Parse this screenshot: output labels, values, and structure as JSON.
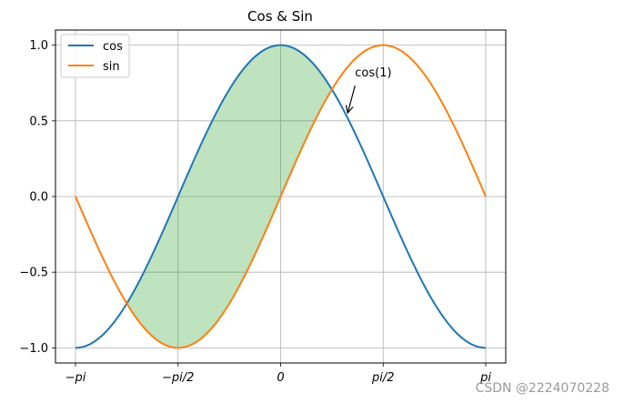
{
  "chart_data": {
    "type": "line",
    "title": "Cos & Sin",
    "xlabel": "",
    "ylabel": "",
    "xlim": [
      -3.14159,
      3.14159
    ],
    "ylim": [
      -1.1,
      1.1
    ],
    "grid": true,
    "legend_position": "top-left",
    "x_ticks": [
      {
        "value": -3.14159,
        "label": "−pi"
      },
      {
        "value": -1.5708,
        "label": "−pi/2"
      },
      {
        "value": 0,
        "label": "0"
      },
      {
        "value": 1.5708,
        "label": "pi/2"
      },
      {
        "value": 3.14159,
        "label": "pi"
      }
    ],
    "y_ticks": [
      {
        "value": -1.0,
        "label": "−1.0"
      },
      {
        "value": -0.5,
        "label": "−0.5"
      },
      {
        "value": 0.0,
        "label": "0.0"
      },
      {
        "value": 0.5,
        "label": "0.5"
      },
      {
        "value": 1.0,
        "label": "1.0"
      }
    ],
    "series": [
      {
        "name": "cos",
        "function": "cos",
        "color": "#1f77b4"
      },
      {
        "name": "sin",
        "function": "sin",
        "color": "#ff7f0e"
      }
    ],
    "fill_between": {
      "series": [
        "cos",
        "sin"
      ],
      "x_range": [
        -2.35619,
        0.785398
      ],
      "color": "#2ca02c",
      "alpha": 0.3
    },
    "annotation": {
      "text": "cos(1)",
      "point": {
        "x": 1.0,
        "y": 0.5403
      }
    }
  },
  "watermark": "CSDN @2224070228"
}
